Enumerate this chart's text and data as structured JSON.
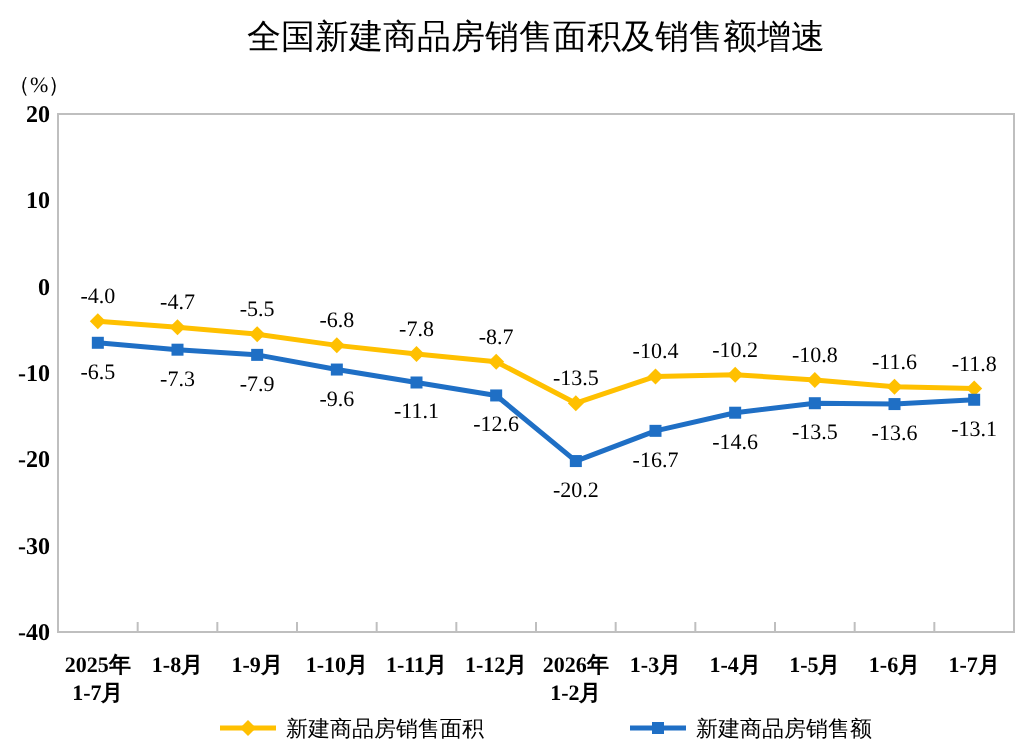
{
  "chart_data": {
    "type": "line",
    "title": "全国新建商品房销售面积及销售额增速",
    "ylabel": "（%）",
    "categories": [
      "2025年\n1-7月",
      "1-8月",
      "1-9月",
      "1-10月",
      "1-11月",
      "1-12月",
      "2026年\n1-2月",
      "1-3月",
      "1-4月",
      "1-5月",
      "1-6月",
      "1-7月"
    ],
    "series": [
      {
        "name": "新建商品房销售面积",
        "color": "#ffc000",
        "marker": "diamond",
        "values": [
          -4.0,
          -4.7,
          -5.5,
          -6.8,
          -7.8,
          -8.7,
          -13.5,
          -10.4,
          -10.2,
          -10.8,
          -11.6,
          -11.8
        ],
        "value_labels": [
          "-4.0",
          "-4.7",
          "-5.5",
          "-6.8",
          "-7.8",
          "-8.7",
          "-13.5",
          "-10.4",
          "-10.2",
          "-10.8",
          "-11.6",
          "-11.8"
        ]
      },
      {
        "name": "新建商品房销售额",
        "color": "#1f6fc5",
        "marker": "square",
        "values": [
          -6.5,
          -7.3,
          -7.9,
          -9.6,
          -11.1,
          -12.6,
          -20.2,
          -16.7,
          -14.6,
          -13.5,
          -13.6,
          -13.1
        ],
        "value_labels": [
          "-6.5",
          "-7.3",
          "-7.9",
          "-9.6",
          "-11.1",
          "-12.6",
          "-20.2",
          "-16.7",
          "-14.6",
          "-13.5",
          "-13.6",
          "-13.1"
        ]
      }
    ],
    "ylim": [
      -40,
      20
    ],
    "yticks": [
      -40,
      -30,
      -20,
      -10,
      0,
      10,
      20
    ],
    "legend": "bottom",
    "grid": false
  }
}
